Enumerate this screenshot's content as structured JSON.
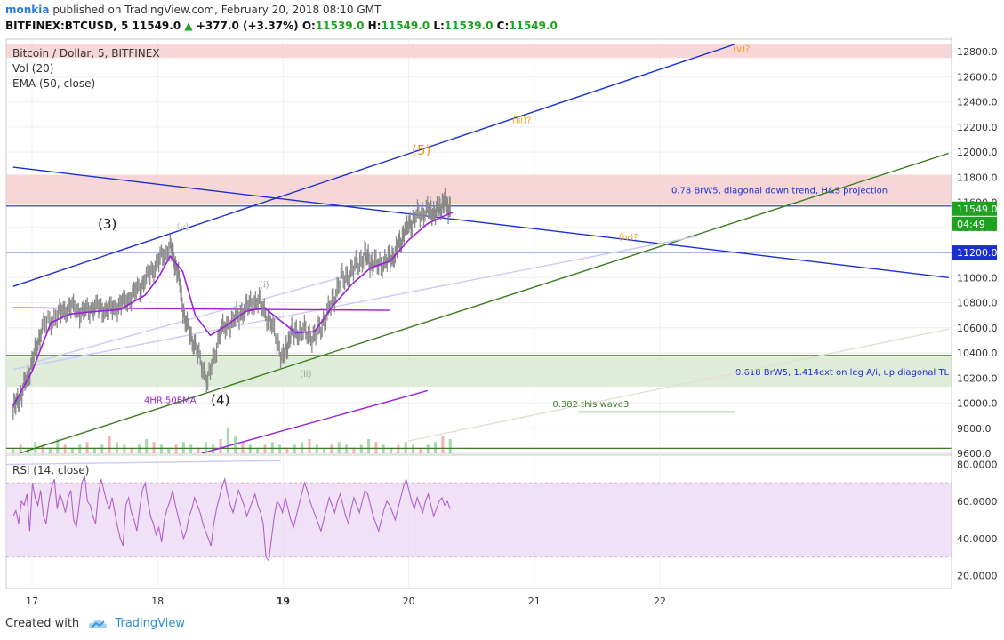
{
  "header": {
    "author": "monkia",
    "published": "published on TradingView.com, February 20, 2018 08:10 GMT",
    "symbol": "BITFINEX:BTCUSD, 5",
    "last": "11549.0",
    "change": "+377.0 (+3.37%)",
    "open_label": "O:",
    "open": "11539.0",
    "high_label": "H:",
    "high": "11549.0",
    "low_label": "L:",
    "low": "11539.0",
    "close_label": "C:",
    "close": "11549.0"
  },
  "legend": {
    "title": "Bitcoin / Dollar, 5, BITFINEX",
    "vol": "Vol (20)",
    "ema": "EMA (50, close)",
    "rsi": "RSI (14, close)"
  },
  "footer": {
    "created_with": "Created with",
    "brand": "TradingView"
  },
  "colors": {
    "candles": "#8a8a8a",
    "ema": "#9b1fd6",
    "rsi": "#b061c9",
    "rsi_band": "#ecd9f5",
    "resistance_zone": "#f6cfd0",
    "support_zone": "#dbe9d4",
    "blue_line": "#1a2fd1",
    "green_line": "#3b7d1f",
    "orange": "#f29a1a",
    "purple": "#9b1fd6",
    "vol_up": "#7fc98a",
    "vol_down": "#ee9090"
  },
  "chart_data": [
    {
      "type": "candlestick",
      "title": "Bitcoin / Dollar, 5, BITFINEX",
      "x_ticks": [
        "17",
        "18",
        "19",
        "20",
        "21",
        "22"
      ],
      "y_ticks": [
        "9600.0",
        "9800.0",
        "10000.0",
        "10200.0",
        "10400.0",
        "10600.0",
        "10800.0",
        "11000.0",
        "11200.0",
        "11400.0",
        "11600.0",
        "11800.0",
        "12000.0",
        "12200.0",
        "12400.0",
        "12600.0",
        "12800.0"
      ],
      "ylim": [
        9600,
        12900
      ],
      "price_labels": {
        "last": "11549.0",
        "countdown": "04:49",
        "level": "11200.0"
      },
      "price_path": [
        [
          16.85,
          9950
        ],
        [
          16.92,
          10080
        ],
        [
          17.0,
          10320
        ],
        [
          17.08,
          10600
        ],
        [
          17.2,
          10700
        ],
        [
          17.3,
          10770
        ],
        [
          17.4,
          10720
        ],
        [
          17.5,
          10770
        ],
        [
          17.6,
          10740
        ],
        [
          17.7,
          10780
        ],
        [
          17.8,
          10860
        ],
        [
          17.9,
          10980
        ],
        [
          18.0,
          11120
        ],
        [
          18.1,
          11250
        ],
        [
          18.16,
          11050
        ],
        [
          18.22,
          10650
        ],
        [
          18.3,
          10450
        ],
        [
          18.4,
          10170
        ],
        [
          18.5,
          10570
        ],
        [
          18.6,
          10650
        ],
        [
          18.7,
          10760
        ],
        [
          18.8,
          10820
        ],
        [
          18.9,
          10650
        ],
        [
          19.0,
          10350
        ],
        [
          19.06,
          10550
        ],
        [
          19.15,
          10580
        ],
        [
          19.25,
          10520
        ],
        [
          19.35,
          10700
        ],
        [
          19.45,
          10960
        ],
        [
          19.55,
          11050
        ],
        [
          19.65,
          11180
        ],
        [
          19.72,
          11100
        ],
        [
          19.82,
          11120
        ],
        [
          19.9,
          11200
        ],
        [
          19.97,
          11380
        ],
        [
          20.05,
          11480
        ],
        [
          20.15,
          11540
        ],
        [
          20.22,
          11520
        ],
        [
          20.28,
          11600
        ],
        [
          20.33,
          11549
        ]
      ],
      "ema_path": [
        [
          16.85,
          9980
        ],
        [
          17.0,
          10250
        ],
        [
          17.15,
          10640
        ],
        [
          17.3,
          10710
        ],
        [
          17.5,
          10730
        ],
        [
          17.7,
          10745
        ],
        [
          17.9,
          10860
        ],
        [
          18.0,
          10990
        ],
        [
          18.1,
          11170
        ],
        [
          18.2,
          11050
        ],
        [
          18.3,
          10700
        ],
        [
          18.42,
          10540
        ],
        [
          18.55,
          10620
        ],
        [
          18.7,
          10730
        ],
        [
          18.85,
          10760
        ],
        [
          19.0,
          10640
        ],
        [
          19.1,
          10560
        ],
        [
          19.25,
          10570
        ],
        [
          19.4,
          10780
        ],
        [
          19.55,
          10950
        ],
        [
          19.7,
          11080
        ],
        [
          19.85,
          11130
        ],
        [
          20.0,
          11300
        ],
        [
          20.15,
          11430
        ],
        [
          20.3,
          11500
        ],
        [
          20.35,
          11520
        ]
      ],
      "volume": [
        2,
        3,
        2,
        4,
        3,
        2,
        5,
        3,
        2,
        3,
        4,
        2,
        3,
        6,
        4,
        3,
        2,
        3,
        5,
        4,
        3,
        2,
        3,
        4,
        3,
        2,
        4,
        3,
        5,
        9,
        6,
        4,
        3,
        2,
        3,
        4,
        3,
        2,
        3,
        4,
        5,
        3,
        2,
        3,
        4,
        3,
        2,
        3,
        5,
        4,
        3,
        2,
        3,
        4,
        3,
        2,
        3,
        4,
        6,
        5
      ],
      "zones": [
        {
          "kind": "resistance",
          "from": 12750,
          "to": 12860
        },
        {
          "kind": "resistance",
          "from": 11580,
          "to": 11820,
          "label": "0.78 BrW5, diagonal down trend, H&S projection"
        },
        {
          "kind": "support",
          "from": 10130,
          "to": 10370,
          "label": "0.618 BrW5, 1.414ext on leg A/i, up diagonal TL"
        }
      ],
      "horizontal_lines": [
        {
          "y": 11200,
          "color": "#7f8be0"
        },
        {
          "y": 11570,
          "color": "#1a2fd1"
        },
        {
          "y": 10380,
          "color": "#3b7d1f"
        },
        {
          "y": 9640,
          "color": "#3b7d1f"
        }
      ],
      "trend_lines": [
        {
          "from": [
            16.85,
            11880
          ],
          "to": [
            24.3,
            11000
          ],
          "color": "#1a2fd1"
        },
        {
          "from": [
            16.85,
            10930
          ],
          "to": [
            22.6,
            12860
          ],
          "color": "#1a2fd1"
        },
        {
          "from": [
            16.9,
            9600
          ],
          "to": [
            24.3,
            11990
          ],
          "color": "#3b7d1f"
        },
        {
          "from": [
            16.85,
            10270
          ],
          "to": [
            22.3,
            11330
          ],
          "color": "#c9cbf3"
        },
        {
          "from": [
            17.0,
            10320
          ],
          "to": [
            19.6,
            11040
          ],
          "color": "#c9cbf3"
        },
        {
          "from": [
            20.0,
            9700
          ],
          "to": [
            24.3,
            10590
          ],
          "color": "#e0dfd2"
        },
        {
          "from": [
            16.85,
            10760
          ],
          "to": [
            19.85,
            10740
          ],
          "color": "#9b1fd6"
        },
        {
          "from": [
            18.35,
            9600
          ],
          "to": [
            20.15,
            10100
          ],
          "color": "#9b1fd6"
        },
        {
          "from": [
            21.35,
            9930
          ],
          "to": [
            22.6,
            9930
          ],
          "color": "#3b7d1f"
        }
      ],
      "annotations": [
        {
          "text": "(3)",
          "x": 17.6,
          "y": 11390,
          "color": "#111111",
          "size": 15
        },
        {
          "text": "(4)",
          "x": 18.5,
          "y": 9990,
          "color": "#111111",
          "size": 15
        },
        {
          "text": "(5)",
          "x": 20.1,
          "y": 11980,
          "color": "#f29a1a",
          "size": 15
        },
        {
          "text": "(v)",
          "x": 18.2,
          "y": 11380,
          "color": "#b7b7b7",
          "size": 10
        },
        {
          "text": "(i)",
          "x": 18.85,
          "y": 10920,
          "color": "#9e9e9e",
          "size": 10
        },
        {
          "text": "(ii)",
          "x": 19.18,
          "y": 10210,
          "color": "#9e9e9e",
          "size": 10
        },
        {
          "text": "(iii)?",
          "x": 20.9,
          "y": 12230,
          "color": "#f29a1a",
          "size": 10
        },
        {
          "text": "(iv)?",
          "x": 21.75,
          "y": 11300,
          "color": "#f29a1a",
          "size": 10
        },
        {
          "text": "(v)?",
          "x": 22.65,
          "y": 12800,
          "color": "#f29a1a",
          "size": 10
        },
        {
          "text": "4HR 50EMA",
          "x": 18.1,
          "y": 10000,
          "color": "#9b1fd6",
          "size": 10
        },
        {
          "text": "0.382 this wave3",
          "x": 21.45,
          "y": 9970,
          "color": "#3b7d1f",
          "size": 10
        }
      ]
    },
    {
      "type": "line",
      "title": "RSI (14, close)",
      "y_ticks": [
        "20.0000",
        "40.0000",
        "60.0000",
        "80.0000"
      ],
      "ylim": [
        13,
        85
      ],
      "band": [
        30,
        70
      ],
      "values": [
        52,
        55,
        48,
        60,
        58,
        64,
        44,
        70,
        62,
        58,
        66,
        52,
        48,
        60,
        68,
        72,
        56,
        64,
        60,
        54,
        62,
        66,
        50,
        46,
        58,
        70,
        74,
        60,
        58,
        52,
        48,
        64,
        72,
        66,
        60,
        56,
        62,
        54,
        46,
        40,
        36,
        58,
        62,
        54,
        50,
        44,
        56,
        66,
        70,
        60,
        52,
        48,
        42,
        46,
        38,
        50,
        56,
        60,
        66,
        58,
        52,
        46,
        40,
        44,
        52,
        56,
        62,
        58,
        54,
        48,
        44,
        40,
        36,
        48,
        56,
        62,
        68,
        72,
        64,
        58,
        54,
        60,
        66,
        62,
        58,
        52,
        56,
        60,
        64,
        58,
        54,
        48,
        30,
        28,
        40,
        52,
        60,
        58,
        54,
        62,
        56,
        50,
        46,
        52,
        58,
        64,
        70,
        66,
        60,
        56,
        52,
        48,
        44,
        50,
        56,
        62,
        58,
        54,
        60,
        64,
        58,
        52,
        48,
        56,
        62,
        58,
        54,
        60,
        66,
        64,
        58,
        52,
        48,
        44,
        50,
        56,
        60,
        58,
        54,
        50,
        56,
        62,
        68,
        72,
        66,
        60,
        56,
        62,
        58,
        54,
        60,
        64,
        58,
        52,
        56,
        60,
        62,
        58,
        60,
        56
      ]
    }
  ]
}
